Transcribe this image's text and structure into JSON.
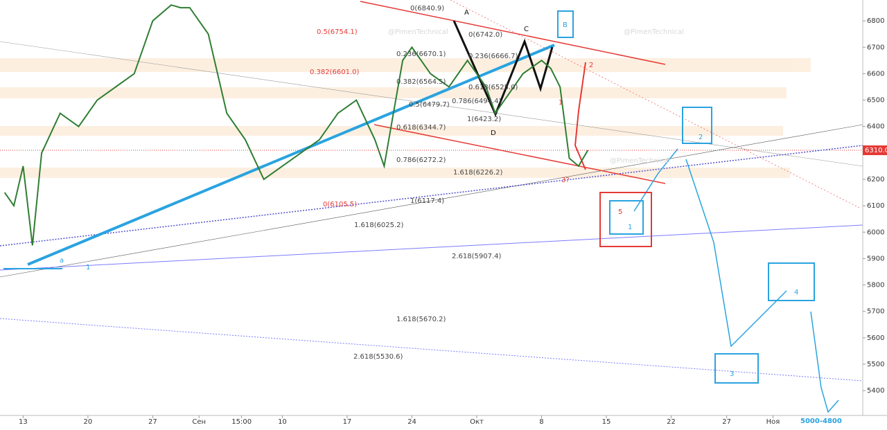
{
  "chart_data": {
    "type": "line",
    "x": [
      -2,
      -1,
      0,
      1,
      2,
      4,
      6,
      8,
      10,
      12,
      14,
      16,
      17,
      18,
      20,
      22,
      24,
      26,
      28,
      30,
      32,
      34,
      36,
      38,
      39,
      40,
      41,
      42,
      44,
      46,
      48,
      50,
      51,
      52,
      54,
      56,
      57,
      58,
      59,
      60,
      61
    ],
    "values": [
      6150,
      6100,
      6250,
      5950,
      6300,
      6450,
      6400,
      6500,
      6550,
      6600,
      6800,
      6860,
      6850,
      6850,
      6750,
      6450,
      6350,
      6200,
      6250,
      6300,
      6350,
      6450,
      6500,
      6350,
      6250,
      6450,
      6650,
      6700,
      6600,
      6550,
      6650,
      6550,
      6450,
      6500,
      6600,
      6650,
      6620,
      6550,
      6280,
      6250,
      6310
    ],
    "color": "#2e7d32",
    "xlim": [
      -2.5,
      90.7
    ],
    "ylim": [
      5306,
      6879
    ],
    "yticks": [
      5400,
      5500,
      5600,
      5700,
      5800,
      5900,
      6000,
      6100,
      6200,
      6300,
      6400,
      6500,
      6600,
      6700,
      6800
    ],
    "xticks": [
      {
        "value": 0,
        "label": "13"
      },
      {
        "value": 7,
        "label": "20"
      },
      {
        "value": 14,
        "label": "27"
      },
      {
        "value": 19,
        "label": "Сен"
      },
      {
        "value": 23.6,
        "label": "15:00"
      },
      {
        "value": 28,
        "label": "10"
      },
      {
        "value": 35,
        "label": "17"
      },
      {
        "value": 42,
        "label": "24"
      },
      {
        "value": 49,
        "label": "Окт"
      },
      {
        "value": 56,
        "label": "8"
      },
      {
        "value": 63,
        "label": "15"
      },
      {
        "value": 70,
        "label": "22"
      },
      {
        "value": 76,
        "label": "27"
      },
      {
        "value": 81,
        "label": "Ноя"
      }
    ],
    "last_price": {
      "value": 6310,
      "label": "6310.0"
    },
    "watermark": "@PimenTechnical",
    "annotations": [
      "0(6840.9)",
      "0.5(6754.1)",
      "0(6742.0)",
      "0.236(6670.1)",
      "0.236(6666.7)",
      "0.382(6601.0)",
      "0.382(6564.5)",
      "0.618(6525.0)",
      "0.786(6494.4)",
      "0.5(6479.7)",
      "1(6423.2)",
      "0.618(6344.7)",
      "0.786(6272.2)",
      "1.618(6226.2)",
      "0(6105.5)",
      "1(6117.4)",
      "1.618(6025.2)",
      "2.618(5907.4)",
      "1.618(5670.2)",
      "2.618(5530.6)",
      "A",
      "B",
      "C",
      "D",
      "1",
      "2",
      "3?",
      "5",
      "1",
      "2",
      "3",
      "4",
      "a",
      "1",
      "5000-4800"
    ]
  }
}
